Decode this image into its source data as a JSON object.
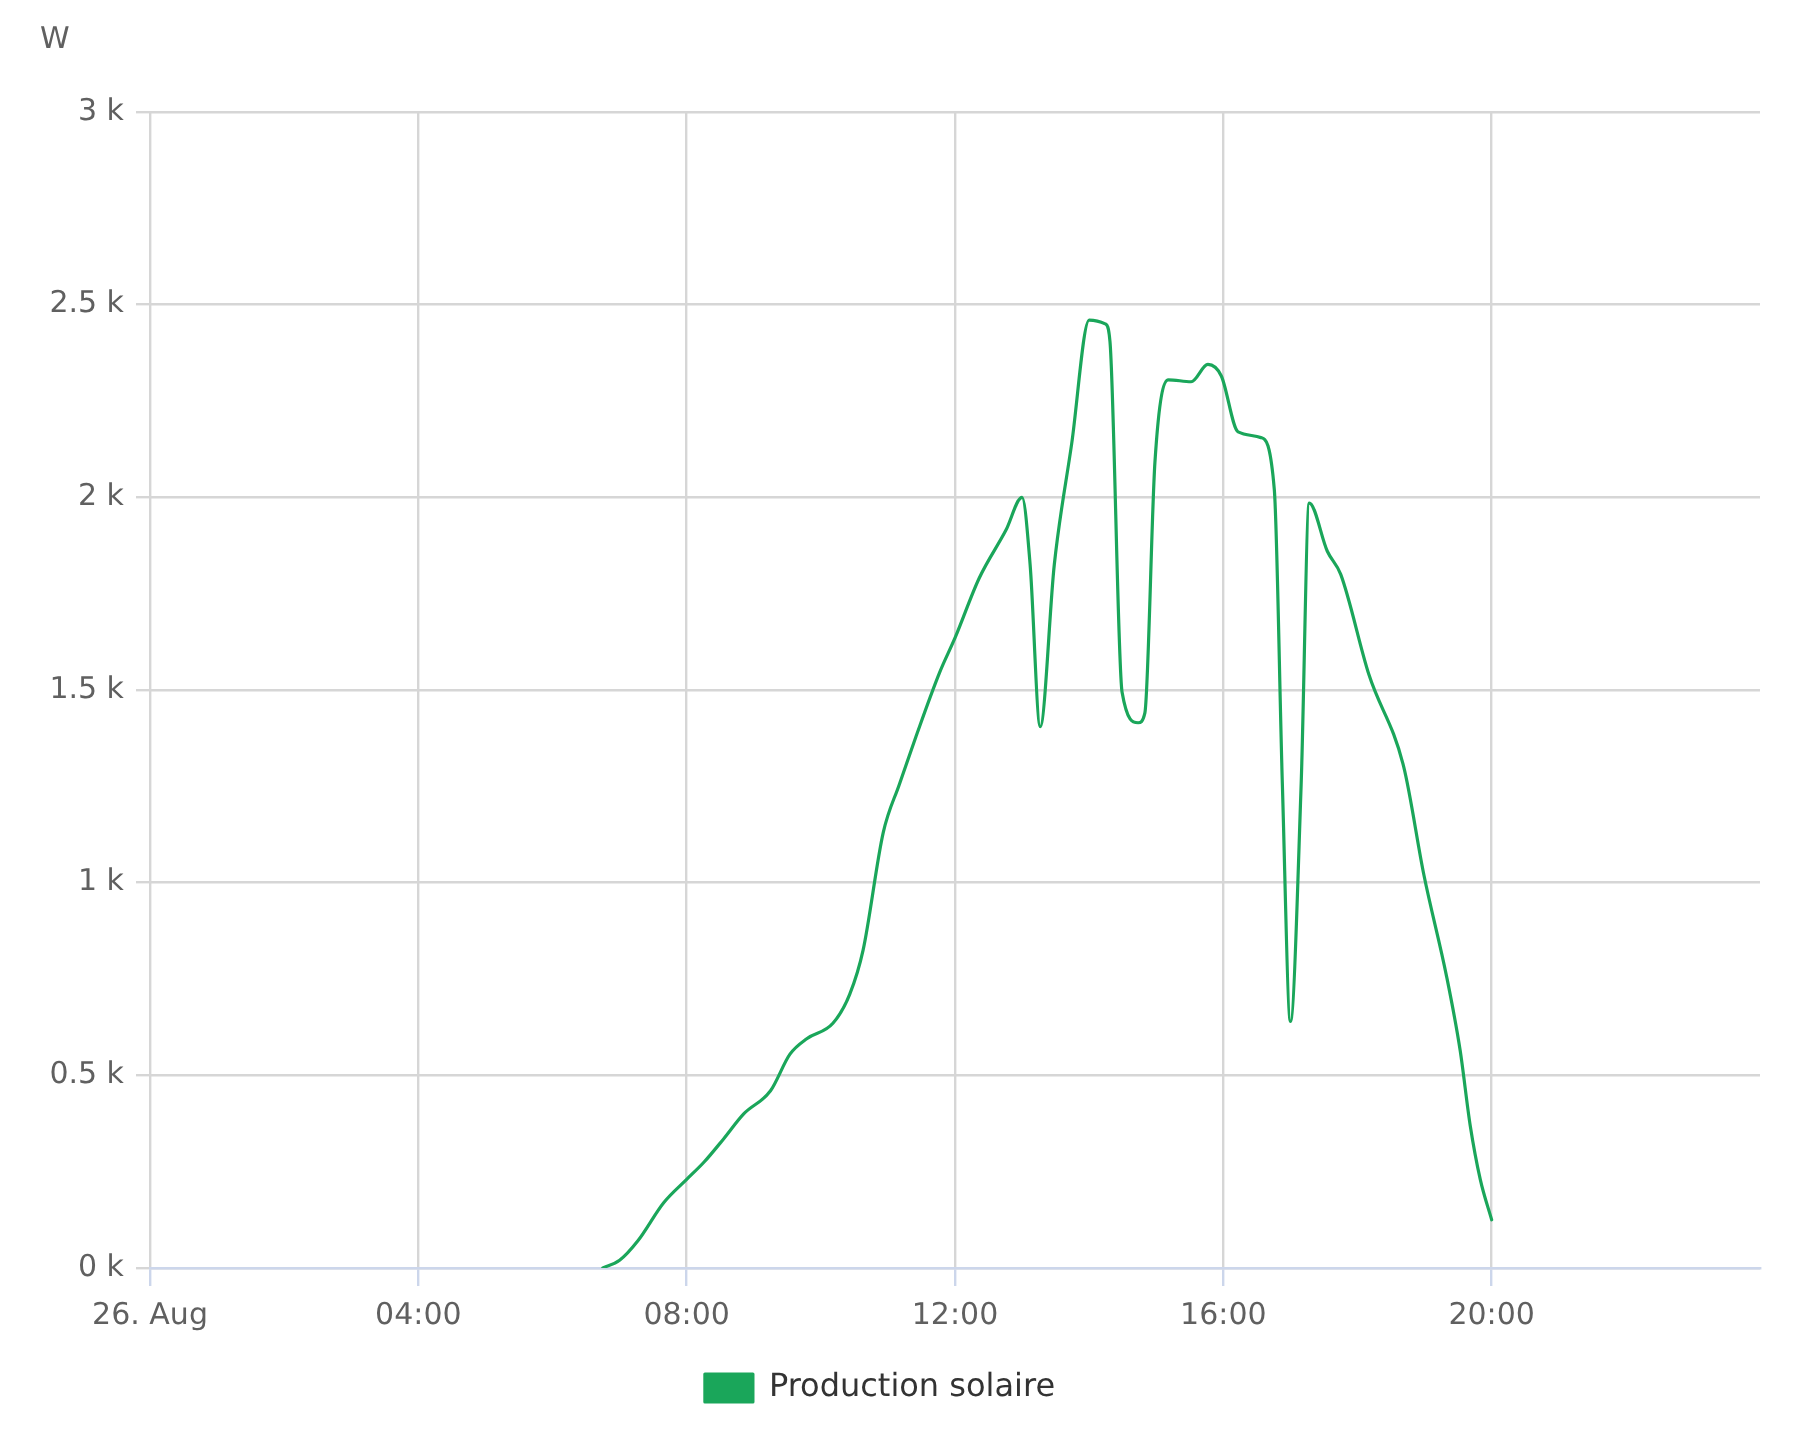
{
  "chart_data": {
    "type": "line",
    "ylabel": "W",
    "x": [
      6.75,
      7.0,
      7.27,
      7.66,
      8.0,
      8.26,
      8.55,
      8.85,
      9.25,
      9.54,
      9.79,
      10.18,
      10.43,
      10.63,
      10.93,
      11.17,
      11.42,
      11.77,
      12.0,
      12.36,
      12.76,
      13.0,
      13.12,
      13.27,
      13.48,
      13.74,
      14.0,
      14.24,
      14.31,
      14.49,
      14.73,
      14.83,
      14.98,
      15.18,
      15.52,
      15.77,
      15.97,
      16.22,
      16.56,
      16.76,
      16.88,
      17.0,
      17.16,
      17.28,
      17.55,
      17.75,
      18.17,
      18.69,
      18.99,
      19.33,
      19.53,
      19.68,
      19.83,
      20.0
    ],
    "series": [
      {
        "name": "Production solaire",
        "color": "#1aa65a",
        "values": [
          0,
          20,
          70,
          170,
          230,
          275,
          335,
          400,
          460,
          555,
          595,
          635,
          710,
          825,
          1130,
          1255,
          1380,
          1545,
          1635,
          1790,
          1915,
          2000,
          1825,
          1405,
          1825,
          2140,
          2460,
          2450,
          2405,
          1495,
          1415,
          1440,
          2090,
          2305,
          2300,
          2345,
          2315,
          2170,
          2155,
          2020,
          1255,
          640,
          1255,
          1985,
          1860,
          1800,
          1540,
          1300,
          1020,
          755,
          565,
          370,
          230,
          125
        ]
      }
    ],
    "xlim": [
      0,
      24
    ],
    "xticks": [
      {
        "value": 0,
        "label": "26. Aug"
      },
      {
        "value": 4,
        "label": "04:00"
      },
      {
        "value": 8,
        "label": "08:00"
      },
      {
        "value": 12,
        "label": "12:00"
      },
      {
        "value": 16,
        "label": "16:00"
      },
      {
        "value": 20,
        "label": "20:00"
      }
    ],
    "ylim": [
      0,
      3000
    ],
    "yticks": [
      {
        "value": 0,
        "label": "0 k"
      },
      {
        "value": 500,
        "label": "0.5 k"
      },
      {
        "value": 1000,
        "label": "1 k"
      },
      {
        "value": 1500,
        "label": "1.5 k"
      },
      {
        "value": 2000,
        "label": "2 k"
      },
      {
        "value": 2500,
        "label": "2.5 k"
      },
      {
        "value": 3000,
        "label": "3 k"
      }
    ],
    "grid": true,
    "legend": "bottom"
  }
}
